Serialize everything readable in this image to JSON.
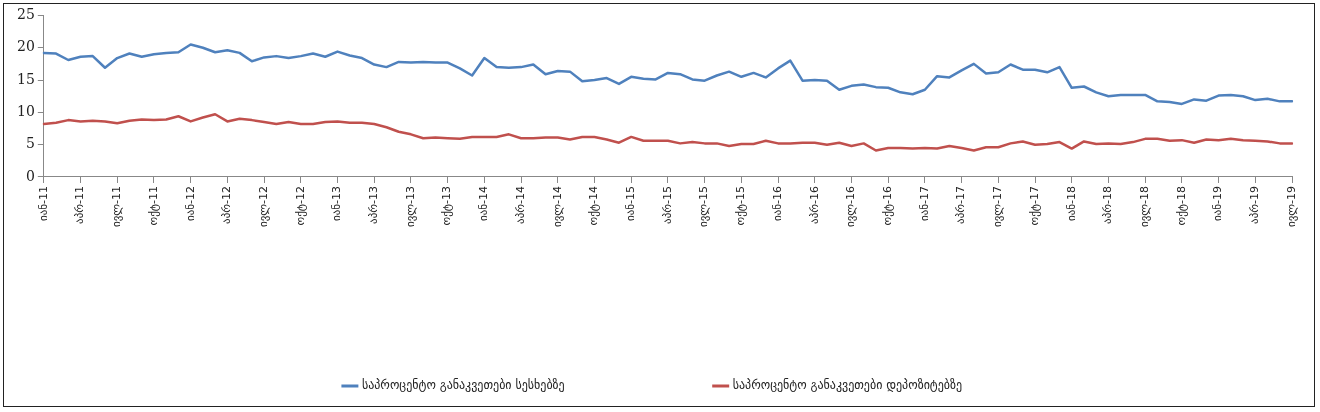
{
  "chart_data": {
    "type": "line",
    "categories": [
      "იან-11",
      null,
      null,
      "აპრ-11",
      null,
      null,
      "ივლ-11",
      null,
      null,
      "ოქტ-11",
      null,
      null,
      "იან-12",
      null,
      null,
      "აპრ-12",
      null,
      null,
      "ივლ-12",
      null,
      null,
      "ოქტ-12",
      null,
      null,
      "იან-13",
      null,
      null,
      "აპრ-13",
      null,
      null,
      "ივლ-13",
      null,
      null,
      "ოქტ-13",
      null,
      null,
      "იან-14",
      null,
      null,
      "აპრ-14",
      null,
      null,
      "ივლ-14",
      null,
      null,
      "ოქტ-14",
      null,
      null,
      "იან-15",
      null,
      null,
      "აპრ-15",
      null,
      null,
      "ივლ-15",
      null,
      null,
      "ოქტ-15",
      null,
      null,
      "იან-16",
      null,
      null,
      "აპრ-16",
      null,
      null,
      "ივლ-16",
      null,
      null,
      "ოქტ-16",
      null,
      null,
      "იან-17",
      null,
      null,
      "აპრ-17",
      null,
      null,
      "ივლ-17",
      null,
      null,
      "ოქტ-17",
      null,
      null,
      "იან-18",
      null,
      null,
      "აპრ-18",
      null,
      null,
      "ივლ-18",
      null,
      null,
      "ოქტ-18",
      null,
      null,
      "იან-19",
      null,
      null,
      "აპრ-19",
      null,
      null,
      "ივლ-19"
    ],
    "series": [
      {
        "name": "საპროცენტო განაკვეთები სესხებზე",
        "color": "#4f81bd",
        "values": [
          19.2,
          19.1,
          18.1,
          18.6,
          18.7,
          16.9,
          18.4,
          19.1,
          18.6,
          19.0,
          19.2,
          19.3,
          20.5,
          20.0,
          19.3,
          19.6,
          19.2,
          17.9,
          18.5,
          18.7,
          18.4,
          18.7,
          19.1,
          18.6,
          19.4,
          18.8,
          18.4,
          17.4,
          17.0,
          17.8,
          17.7,
          17.8,
          17.7,
          17.7,
          16.8,
          15.7,
          18.4,
          17.0,
          16.9,
          17.0,
          17.4,
          15.9,
          16.4,
          16.3,
          14.8,
          15.0,
          15.3,
          14.4,
          15.5,
          15.2,
          15.1,
          16.1,
          15.9,
          15.1,
          14.9,
          15.7,
          16.3,
          15.5,
          16.1,
          15.4,
          16.8,
          18.0,
          14.9,
          15.0,
          14.9,
          13.5,
          14.1,
          14.3,
          13.9,
          13.8,
          13.1,
          12.8,
          13.5,
          15.6,
          15.4,
          16.5,
          17.5,
          16.0,
          16.2,
          17.4,
          16.6,
          16.6,
          16.2,
          17.0,
          13.8,
          14.0,
          13.1,
          12.5,
          12.7,
          12.7,
          12.7,
          11.7,
          11.6,
          11.3,
          12.0,
          11.8,
          12.6,
          12.7,
          12.5,
          11.9,
          12.1,
          11.7,
          11.7
        ]
      },
      {
        "name": "საპროცენტო განაკვეთები დეპოზიტებზე",
        "color": "#c0504d",
        "values": [
          8.2,
          8.4,
          8.8,
          8.6,
          8.7,
          8.6,
          8.3,
          8.7,
          8.9,
          8.8,
          8.9,
          9.4,
          8.6,
          9.2,
          9.7,
          8.6,
          9.0,
          8.8,
          8.5,
          8.2,
          8.5,
          8.2,
          8.2,
          8.5,
          8.6,
          8.4,
          8.4,
          8.2,
          7.7,
          7.0,
          6.6,
          6.0,
          6.1,
          6.0,
          5.9,
          6.2,
          6.2,
          6.2,
          6.6,
          6.0,
          6.0,
          6.1,
          6.1,
          5.8,
          6.2,
          6.2,
          5.8,
          5.3,
          6.2,
          5.6,
          5.6,
          5.6,
          5.2,
          5.4,
          5.2,
          5.2,
          4.8,
          5.1,
          5.1,
          5.6,
          5.2,
          5.2,
          5.3,
          5.3,
          5.0,
          5.3,
          4.8,
          5.2,
          4.1,
          4.5,
          4.5,
          4.4,
          4.5,
          4.4,
          4.8,
          4.5,
          4.1,
          4.6,
          4.6,
          5.2,
          5.5,
          5.0,
          5.1,
          5.4,
          4.4,
          5.5,
          5.1,
          5.2,
          5.1,
          5.4,
          5.9,
          5.9,
          5.6,
          5.7,
          5.3,
          5.8,
          5.7,
          5.9,
          5.7,
          5.6,
          5.5,
          5.2,
          5.2
        ]
      }
    ],
    "ylim": [
      0,
      25
    ],
    "yticks": [
      0,
      5,
      10,
      15,
      20,
      25
    ],
    "grid": false,
    "legend": "bottom",
    "marker": "none",
    "line_style": "solid"
  }
}
